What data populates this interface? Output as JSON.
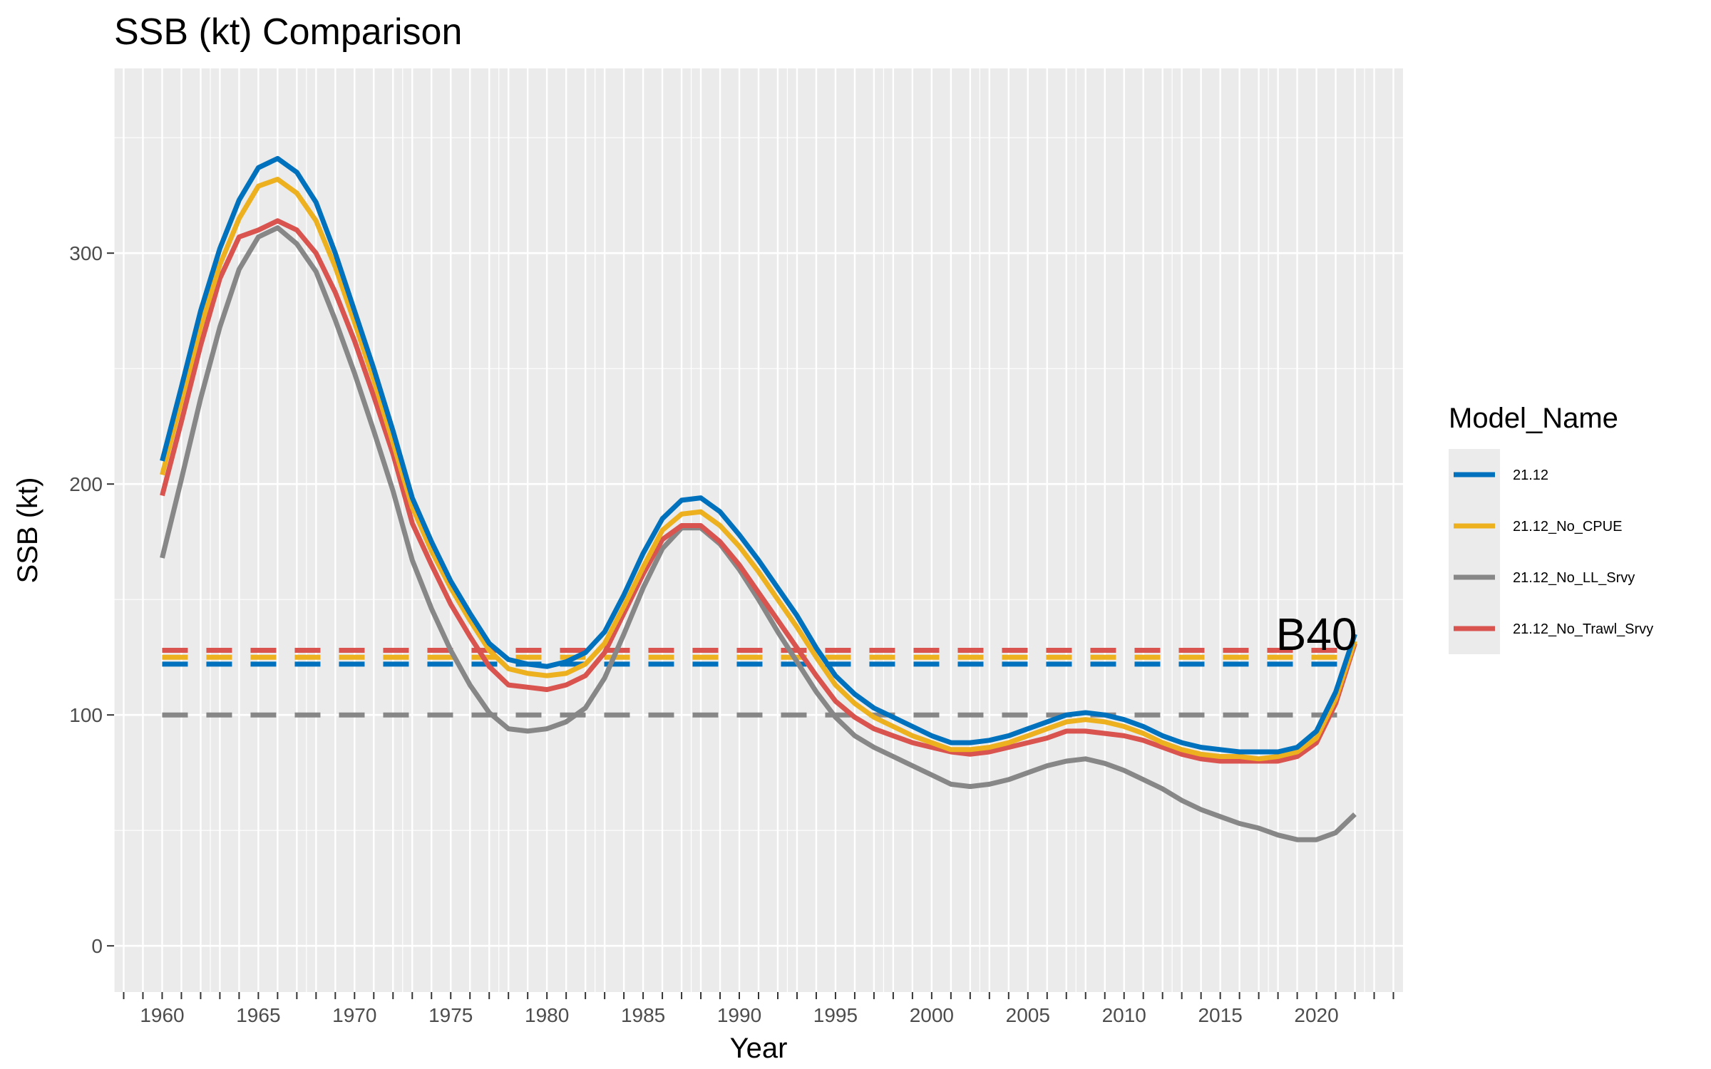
{
  "chart_data": {
    "type": "line",
    "title": "SSB (kt) Comparison",
    "xlabel": "Year",
    "ylabel": "SSB (kt)",
    "xlim": [
      1957.5,
      2024.5
    ],
    "ylim": [
      -20,
      380
    ],
    "x_ticks": [
      1960,
      1965,
      1970,
      1975,
      1980,
      1985,
      1990,
      1995,
      2000,
      2005,
      2010,
      2015,
      2020
    ],
    "x_tick_labels": [
      "1960",
      "1965",
      "1970",
      "1975",
      "1980",
      "1985",
      "1990",
      "1995",
      "2000",
      "2005",
      "2010",
      "2015",
      "2020"
    ],
    "y_ticks": [
      0,
      100,
      200,
      300
    ],
    "y_tick_labels": [
      "0",
      "100",
      "200",
      "300"
    ],
    "grid": true,
    "legend": {
      "title": "Model_Name",
      "position": "right"
    },
    "annotation": {
      "text": "B40",
      "x": 2020,
      "y": 135
    },
    "x": [
      1960,
      1961,
      1962,
      1963,
      1964,
      1965,
      1966,
      1967,
      1968,
      1969,
      1970,
      1971,
      1972,
      1973,
      1974,
      1975,
      1976,
      1977,
      1978,
      1979,
      1980,
      1981,
      1982,
      1983,
      1984,
      1985,
      1986,
      1987,
      1988,
      1989,
      1990,
      1991,
      1992,
      1993,
      1994,
      1995,
      1996,
      1997,
      1998,
      1999,
      2000,
      2001,
      2002,
      2003,
      2004,
      2005,
      2006,
      2007,
      2008,
      2009,
      2010,
      2011,
      2012,
      2013,
      2014,
      2015,
      2016,
      2017,
      2018,
      2019,
      2020,
      2021,
      2022
    ],
    "series": [
      {
        "name": "21.12",
        "color": "#0072BD",
        "values": [
          210,
          242,
          275,
          302,
          323,
          337,
          341,
          335,
          322,
          300,
          275,
          250,
          223,
          194,
          175,
          158,
          144,
          131,
          124,
          122,
          121,
          123,
          127,
          136,
          152,
          170,
          185,
          193,
          194,
          188,
          178,
          167,
          155,
          143,
          129,
          117,
          109,
          103,
          99,
          95,
          91,
          88,
          88,
          89,
          91,
          94,
          97,
          100,
          101,
          100,
          98,
          95,
          91,
          88,
          86,
          85,
          84,
          84,
          84,
          86,
          93,
          110,
          135
        ],
        "b40": 122
      },
      {
        "name": "21.12_No_CPUE",
        "color": "#EDB120",
        "values": [
          204,
          236,
          268,
          295,
          315,
          329,
          332,
          326,
          314,
          294,
          270,
          245,
          218,
          190,
          171,
          155,
          141,
          128,
          120,
          118,
          117,
          118,
          122,
          131,
          147,
          164,
          180,
          187,
          188,
          182,
          173,
          162,
          150,
          138,
          125,
          113,
          105,
          99,
          95,
          91,
          88,
          85,
          85,
          86,
          88,
          91,
          94,
          97,
          98,
          97,
          95,
          92,
          88,
          85,
          83,
          82,
          82,
          81,
          82,
          84,
          90,
          107,
          132
        ],
        "b40": 125
      },
      {
        "name": "21.12_No_LL_Srvy",
        "color": "#878787",
        "values": [
          168,
          202,
          237,
          268,
          293,
          307,
          311,
          304,
          292,
          271,
          248,
          223,
          197,
          167,
          146,
          128,
          113,
          101,
          94,
          93,
          94,
          97,
          103,
          116,
          135,
          155,
          172,
          181,
          181,
          174,
          163,
          150,
          136,
          123,
          110,
          99,
          91,
          86,
          82,
          78,
          74,
          70,
          69,
          70,
          72,
          75,
          78,
          80,
          81,
          79,
          76,
          72,
          68,
          63,
          59,
          56,
          53,
          51,
          48,
          46,
          46,
          49,
          57
        ],
        "b40": 100
      },
      {
        "name": "21.12_No_Trawl_Srvy",
        "color": "#D9534F",
        "values": [
          195,
          227,
          260,
          289,
          307,
          310,
          314,
          310,
          300,
          283,
          262,
          238,
          213,
          183,
          165,
          148,
          134,
          121,
          113,
          112,
          111,
          113,
          117,
          127,
          144,
          161,
          176,
          182,
          182,
          175,
          165,
          153,
          141,
          129,
          117,
          106,
          99,
          94,
          91,
          88,
          86,
          84,
          83,
          84,
          86,
          88,
          90,
          93,
          93,
          92,
          91,
          89,
          86,
          83,
          81,
          80,
          80,
          80,
          80,
          82,
          88,
          105,
          131
        ],
        "b40": 128
      }
    ]
  }
}
